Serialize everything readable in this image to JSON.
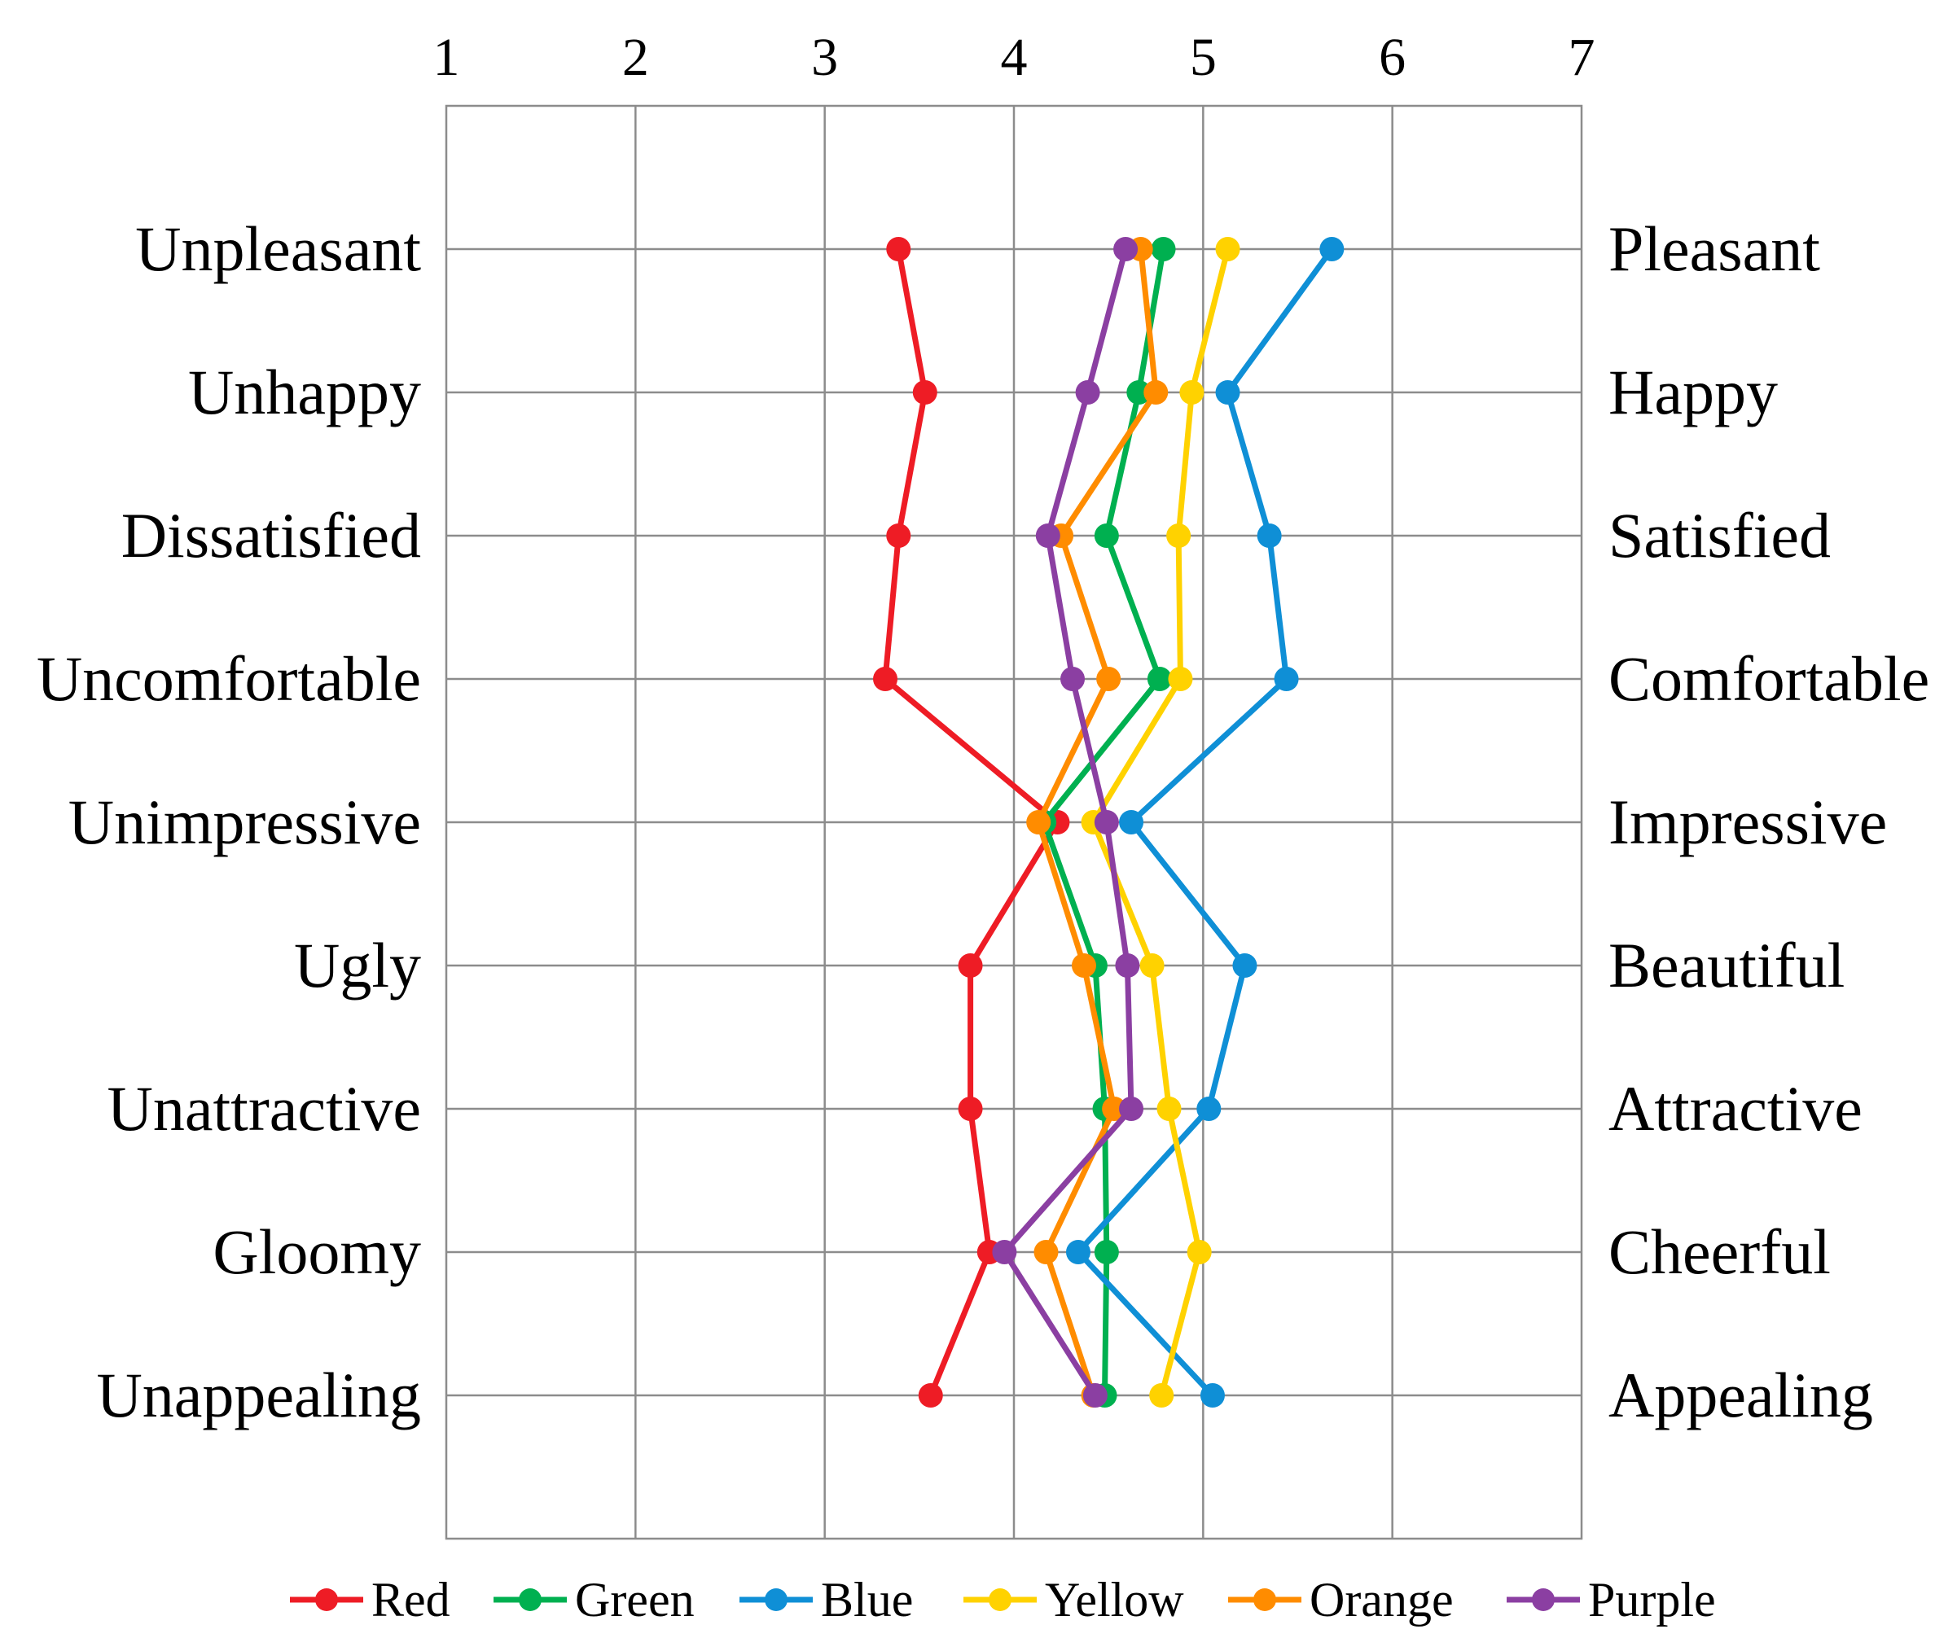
{
  "chart_data": {
    "type": "line",
    "title": "",
    "xlabel": "",
    "ylabel": "",
    "xlim": [
      1,
      7
    ],
    "x_ticks": [
      "1",
      "2",
      "3",
      "4",
      "5",
      "6",
      "7"
    ],
    "grid": true,
    "legend_position": "bottom",
    "categories_left": [
      "Unpleasant",
      "Unhappy",
      "Dissatisfied",
      "Uncomfortable",
      "Unimpressive",
      "Ugly",
      "Unattractive",
      "Gloomy",
      "Unappealing"
    ],
    "categories_right": [
      "Pleasant",
      "Happy",
      "Satisfied",
      "Comfortable",
      "Impressive",
      "Beautiful",
      "Attractive",
      "Cheerful",
      "Appealing"
    ],
    "series": [
      {
        "name": "Red",
        "color": "#ee1c25",
        "values": [
          3.39,
          3.53,
          3.39,
          3.32,
          4.23,
          3.77,
          3.77,
          3.87,
          3.56
        ]
      },
      {
        "name": "Green",
        "color": "#00b050",
        "values": [
          4.79,
          4.66,
          4.49,
          4.77,
          4.16,
          4.43,
          4.48,
          4.49,
          4.48
        ]
      },
      {
        "name": "Blue",
        "color": "#0f8fd6",
        "values": [
          5.68,
          5.13,
          5.35,
          5.44,
          4.62,
          5.22,
          5.03,
          4.34,
          5.05
        ]
      },
      {
        "name": "Yellow",
        "color": "#ffd200",
        "values": [
          5.13,
          4.94,
          4.87,
          4.88,
          4.42,
          4.73,
          4.82,
          4.98,
          4.78
        ]
      },
      {
        "name": "Orange",
        "color": "#ff8c00",
        "values": [
          4.67,
          4.75,
          4.25,
          4.5,
          4.13,
          4.37,
          4.53,
          4.17,
          4.42
        ]
      },
      {
        "name": "Purple",
        "color": "#8b3fa2",
        "values": [
          4.59,
          4.39,
          4.18,
          4.31,
          4.49,
          4.6,
          4.62,
          3.95,
          4.43
        ]
      }
    ]
  }
}
